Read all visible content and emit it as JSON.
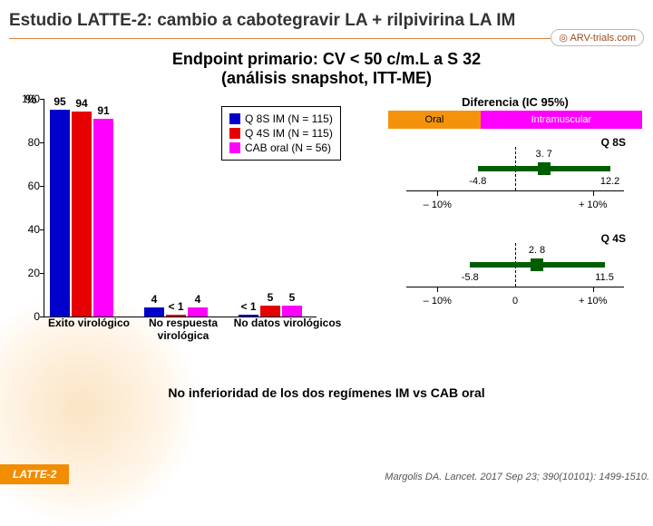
{
  "page_title": "Estudio LATTE-2: cambio a cabotegravir LA + rilpivirina LA IM",
  "logo_text": "ARV-trials.com",
  "sub_title_l1": "Endpoint primario: CV < 50 c/m.L a S 32",
  "sub_title_l2": "(análisis snapshot, ITT-ME)",
  "legend": {
    "q8s": "Q 8S IM (N = 115)",
    "q4s": "Q 4S IM (N = 115)",
    "cab": "CAB oral (N = 56)"
  },
  "colors": {
    "q8s": "#0000cc",
    "q4s": "#e60000",
    "cab": "#ff00ff",
    "forest": "#005e00",
    "oral_band": "#f4930b",
    "im_band": "#ff00ff"
  },
  "bar_chart": {
    "ymax": 100,
    "ticks": [
      0,
      20,
      40,
      60,
      80,
      100
    ],
    "groups": [
      {
        "label": "Exito virológico",
        "vals": [
          95,
          94,
          91
        ]
      },
      {
        "label_l1": "No respuesta",
        "label_l2": "virológica",
        "val_labels": [
          "4",
          "< 1",
          "4"
        ],
        "vals": [
          4,
          0.9,
          4
        ]
      },
      {
        "label": "No datos virológicos",
        "val_labels": [
          "< 1",
          "5",
          "5"
        ],
        "vals": [
          0.9,
          5,
          5
        ]
      }
    ]
  },
  "dif_title": "Diferencia (IC 95%)",
  "band_oral": "Oral",
  "band_im": "Intramuscular",
  "forest": [
    {
      "label": "Q 8S",
      "pt": 3.7,
      "lo": -4.8,
      "hi": 12.2,
      "lo_t": "– 10%",
      "hi_t": "+ 10%"
    },
    {
      "label": "Q 4S",
      "pt": 2.8,
      "lo": -5.8,
      "hi": 11.5,
      "lo_t": "– 10%",
      "mid_t": "0",
      "hi_t": "+ 10%"
    }
  ],
  "forest_range": {
    "min": -14,
    "max": 14
  },
  "conclusion": "No inferioridad de los dos regímenes IM vs CAB oral",
  "footer_tag": "LATTE-2",
  "citation": "Margolis DA. Lancet. 2017 Sep 23; 390(10101): 1499-1510."
}
